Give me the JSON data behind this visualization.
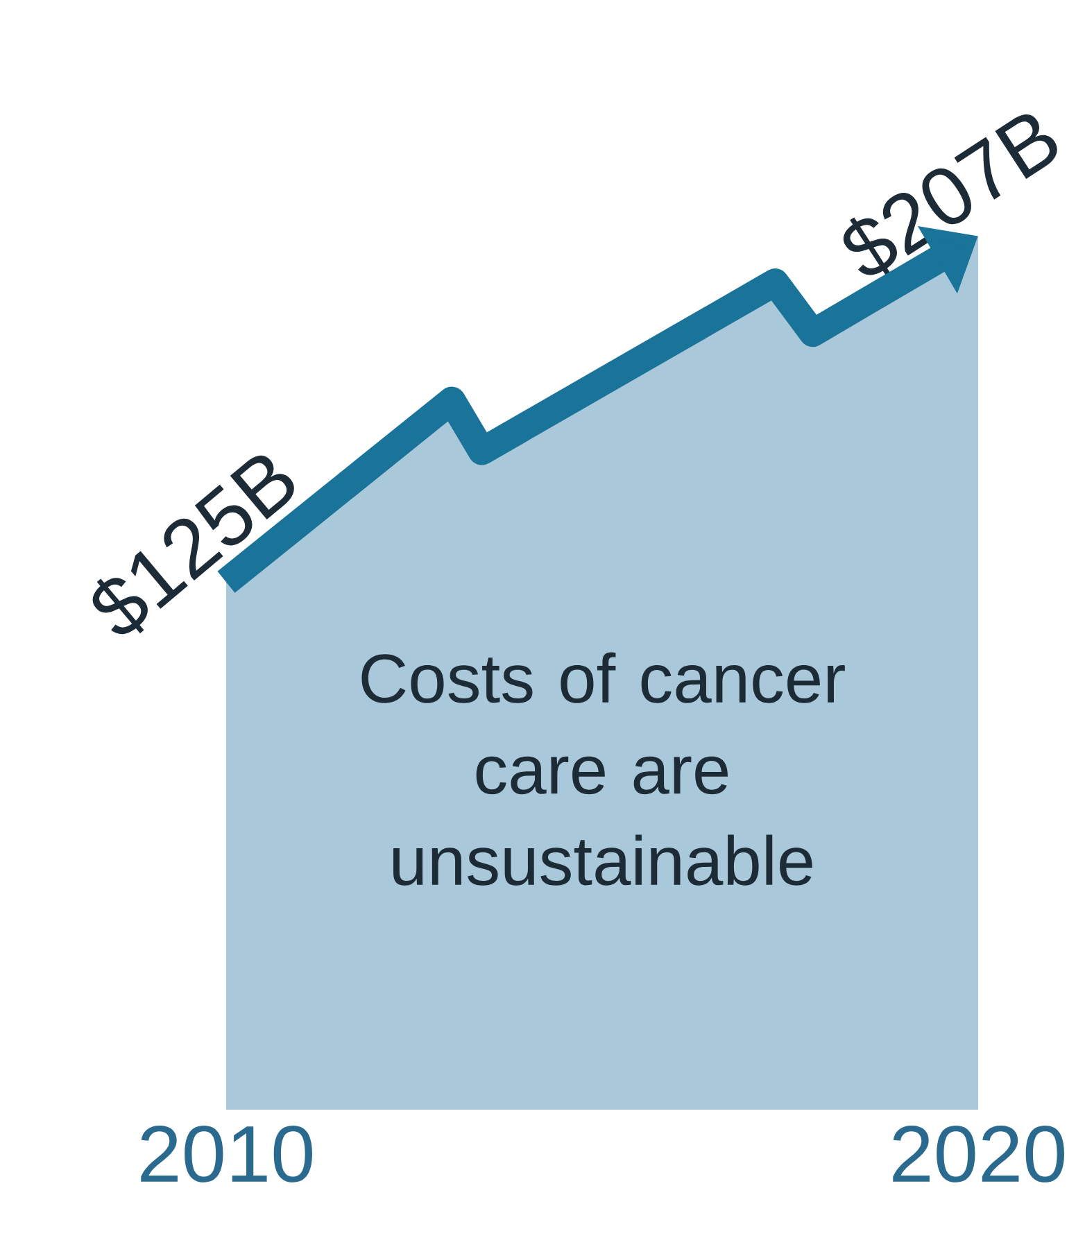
{
  "chart_data": {
    "type": "area",
    "x": [
      2010,
      2013,
      2013.4,
      2017.3,
      2017.8,
      2020
    ],
    "values": [
      125,
      168,
      156,
      196,
      184,
      207
    ],
    "value_labels": [
      "$125B",
      null,
      null,
      null,
      null,
      "$207B"
    ],
    "color": "#1a7399",
    "xlim": [
      2010,
      2020
    ],
    "xticks": [
      2010,
      2020
    ],
    "tick_labels": "x",
    "annotations": [
      "Costs of cancer care are unsustainable"
    ]
  }
}
